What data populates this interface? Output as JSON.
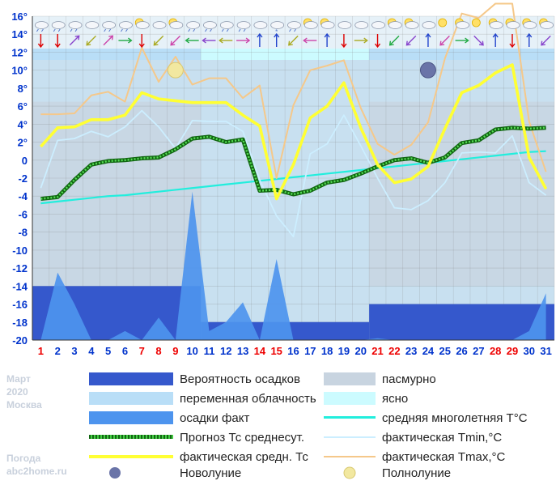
{
  "chart_data": {
    "type": "line",
    "month": "Март",
    "year": "2020",
    "city": "Москва",
    "site_line1": "Погода",
    "site_line2": "abc2home.ru",
    "y_ticks": [
      "16°",
      "14°",
      "12°",
      "10°",
      "8°",
      "6°",
      "4°",
      "2°",
      "0",
      "-2",
      "-4",
      "-6",
      "-8",
      "-10",
      "-12",
      "-14",
      "-16",
      "-18",
      "-20"
    ],
    "ylim": [
      -20,
      16
    ],
    "x": [
      1,
      2,
      3,
      4,
      5,
      6,
      7,
      8,
      9,
      10,
      11,
      12,
      13,
      14,
      15,
      16,
      17,
      18,
      19,
      20,
      21,
      22,
      23,
      24,
      25,
      26,
      27,
      28,
      29,
      30,
      31
    ],
    "x_labels": [
      "1",
      "2",
      "3",
      "4",
      "5",
      "6",
      "7",
      "8",
      "9",
      "10",
      "11",
      "12",
      "13",
      "14",
      "15",
      "16",
      "17",
      "18",
      "19",
      "20",
      "21",
      "22",
      "23",
      "24",
      "25",
      "26",
      "27",
      "28",
      "29",
      "30",
      "31"
    ],
    "red_days": [
      1,
      7,
      8,
      9,
      14,
      15,
      21,
      22,
      28,
      29
    ],
    "series": [
      {
        "name": "фактическая средн. Тс",
        "color": "#ffff33",
        "values": [
          1.5,
          3.6,
          3.7,
          4.5,
          4.5,
          5,
          7.5,
          6.8,
          6.6,
          6.4,
          6.4,
          6.4,
          5,
          3.8,
          -4.3,
          -0.5,
          4.7,
          6,
          8.6,
          3.6,
          -0.5,
          -2.5,
          -2.1,
          -0.7,
          3.5,
          7.5,
          8.3,
          9.7,
          10.6,
          0.3,
          -3.2
        ]
      },
      {
        "name": "Прогноз Тс среднесут.",
        "color": "#22aa22",
        "values": [
          -4.3,
          -4.1,
          -2.2,
          -0.5,
          -0.1,
          0,
          0.2,
          0.3,
          1.2,
          2.4,
          2.6,
          2,
          2.3,
          -3.4,
          -3.3,
          -3.8,
          -3.4,
          -2.5,
          -2.2,
          -1.5,
          -0.7,
          0,
          0.2,
          -0.3,
          0.3,
          1.9,
          2.2,
          3.4,
          3.6,
          3.5,
          3.6
        ]
      },
      {
        "name": "фактическая Tmin,°С",
        "color": "#cceeff",
        "values": [
          -3.1,
          2.2,
          2.4,
          3.2,
          2.6,
          3.7,
          5.5,
          3.7,
          1.3,
          4.4,
          4.3,
          4.3,
          3.2,
          -2.2,
          -6.2,
          -8.5,
          0.7,
          1.8,
          5,
          1.6,
          -2,
          -5.3,
          -5.5,
          -4.5,
          -2.5,
          0.8,
          0.9,
          0.8,
          2.7,
          -2.5,
          -3.9
        ]
      },
      {
        "name": "фактическая Tmax,°С",
        "color": "#f5c88a",
        "values": [
          5.1,
          5.1,
          5.2,
          7.2,
          7.6,
          6.5,
          12.5,
          8.7,
          11.5,
          8.4,
          9.1,
          9.1,
          6.9,
          8.3,
          -2,
          6.1,
          10,
          10.5,
          11.1,
          5.8,
          1.8,
          0.6,
          1.7,
          4.2,
          11.3,
          16.3,
          15.8,
          17.4,
          17.4,
          4.3,
          -1.3
        ]
      },
      {
        "name": "средняя многолетняя Т°С",
        "color": "#22eedd",
        "values": [
          -4.8,
          -4.6,
          -4.4,
          -4.2,
          -4,
          -3.9,
          -3.7,
          -3.5,
          -3.3,
          -3.1,
          -2.9,
          -2.7,
          -2.5,
          -2.3,
          -2.1,
          -1.9,
          -1.7,
          -1.5,
          -1.3,
          -1.1,
          -0.9,
          -0.7,
          -0.5,
          -0.3,
          -0.1,
          0.1,
          0.3,
          0.5,
          0.7,
          0.9,
          1
        ]
      },
      {
        "name": "осадки факт",
        "color": "#4d94ee",
        "values": [
          -20,
          -12.5,
          -16,
          -20,
          -20,
          -19,
          -20,
          -17.5,
          -20,
          -3.5,
          -19,
          -18,
          -15.8,
          -20,
          -11,
          -20,
          -20,
          -20,
          -20,
          -20,
          -19.8,
          -20,
          -20,
          -20,
          -20,
          -20,
          -20,
          -20,
          -20,
          -19,
          -14.8
        ]
      }
    ],
    "precip_probability": [
      {
        "from_day": 1,
        "to_day": 10,
        "level": -14
      },
      {
        "from_day": 11,
        "to_day": 20,
        "level": -18
      },
      {
        "from_day": 21,
        "to_day": 31,
        "level": -16
      }
    ],
    "sky_background": [
      {
        "from_day": 1,
        "to_day": 10,
        "sky": "переменная облачность"
      },
      {
        "from_day": 11,
        "to_day": 20,
        "sky": "ясно"
      },
      {
        "from_day": 21,
        "to_day": 31,
        "sky": "переменная облачность"
      }
    ],
    "moon": {
      "full_moon_day": 9,
      "new_moon_day": 24
    },
    "weather_icons": [
      "rain",
      "rain",
      "rain",
      "cloud",
      "rain",
      "rain",
      "sun-cloud",
      "cloud",
      "sun-cloud",
      "rain",
      "rain",
      "rain",
      "rain",
      "cloud",
      "snow",
      "rain",
      "sun-cloud",
      "sun-cloud",
      "cloud",
      "cloud",
      "cloud",
      "sun-cloud",
      "sun-cloud",
      "cloud",
      "sun",
      "sun-cloud",
      "sun",
      "sun-cloud",
      "sun-cloud",
      "sun-cloud",
      "sun-cloud"
    ],
    "wind_directions": [
      "S",
      "S",
      "NE",
      "SW",
      "NE",
      "E",
      "S",
      "SW",
      "SW",
      "W",
      "W",
      "W",
      "E",
      "N",
      "N",
      "SW",
      "W",
      "N",
      "S",
      "E",
      "S",
      "SW",
      "SW",
      "N",
      "SW",
      "E",
      "SE",
      "N",
      "S",
      "N",
      "SW"
    ],
    "colors": {
      "plot_bg": "#c8e0f0",
      "partly_cloudy": "#b9def7",
      "clear": "#ccfbff",
      "overcast": "#c8d4e0",
      "precip_prob": "#3558cc",
      "axis_text": "#0033cc",
      "red_day": "#ee0000",
      "grid": "#808080"
    }
  },
  "legend": {
    "precip_prob": "Вероятность осадков",
    "overcast": "пасмурно",
    "partly_cloudy": "переменная облачность",
    "clear": "ясно",
    "precip_fact": "осадки факт",
    "avg_longterm": "средняя многолетняя Т°С",
    "forecast_avg": "Прогноз Тс среднесут.",
    "tmin": "фактическая Tmin,°С",
    "actual_avg": "фактическая средн. Тс",
    "tmax": "фактическая Tmax,°С",
    "new_moon": "Новолуние",
    "full_moon": "Полнолуние"
  }
}
